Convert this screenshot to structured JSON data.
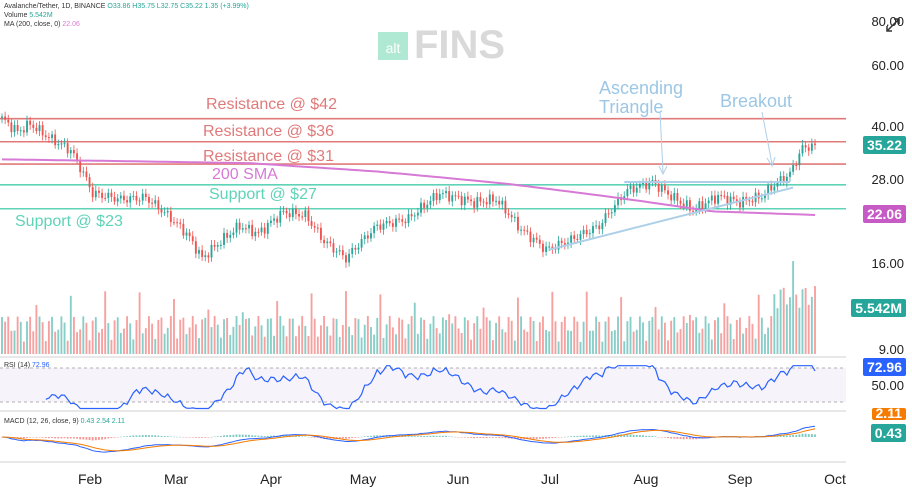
{
  "header": {
    "symbol_line": "Avalanche/Tether, 1D, BINANCE",
    "ohlc": "O33.86 H35.75 L32.75 C35.22 1.35 (+3.99%)",
    "volume_label": "Volume",
    "volume_value": "5.542M",
    "ma_label": "MA (200, close, 0)",
    "ma_value": "22.06",
    "rsi_label": "RSI (14)",
    "rsi_value": "72.96",
    "macd_label": "MACD (12, 26, close, 9)",
    "macd_values": "0.43  2.54  2.11"
  },
  "watermark": {
    "alt": "alt",
    "brand": "FINS"
  },
  "price_axis": [
    "80.00",
    "60.00",
    "40.00",
    "28.00",
    "16.00",
    "9.00"
  ],
  "rsi_axis": "50.00",
  "badges": {
    "price": "35.22",
    "ma": "22.06",
    "volume": "5.542M",
    "rsi": "72.96",
    "macd_signal": "2.11",
    "macd": "0.43"
  },
  "months": [
    "Feb",
    "Mar",
    "Apr",
    "May",
    "Jun",
    "Jul",
    "Aug",
    "Sep",
    "Oct"
  ],
  "annotations": {
    "r42": "Resistance @ $42",
    "r36": "Resistance @ $36",
    "r31": "Resistance @ $31",
    "sma": "200 SMA",
    "s27": "Support @ $27",
    "s23": "Support @ $23",
    "triangle_1": "Ascending",
    "triangle_2": "Triangle",
    "breakout": "Breakout"
  },
  "colors": {
    "up": "#26a69a",
    "down": "#ef5350",
    "resistance": "#e07a7a",
    "support": "#5fd3b8",
    "sma": "#d67ad6",
    "rsi": "#2962ff",
    "triangle": "#aecfe8"
  },
  "chart_data": {
    "type": "line",
    "x_start": "2023-01-05",
    "x_end": "2023-09-22",
    "price_scale": "log",
    "levels": {
      "resistance": [
        42,
        36,
        31
      ],
      "support": [
        27,
        23
      ]
    },
    "close_anchors": [
      [
        "2023-01-05",
        42.0
      ],
      [
        "2023-01-10",
        38.5
      ],
      [
        "2023-01-14",
        40.5
      ],
      [
        "2023-01-20",
        37.0
      ],
      [
        "2023-01-27",
        34.0
      ],
      [
        "2023-02-03",
        25.5
      ],
      [
        "2023-02-12",
        24.5
      ],
      [
        "2023-02-20",
        24.8
      ],
      [
        "2023-02-27",
        22.0
      ],
      [
        "2023-03-05",
        19.5
      ],
      [
        "2023-03-10",
        16.5
      ],
      [
        "2023-03-16",
        18.5
      ],
      [
        "2023-03-22",
        20.5
      ],
      [
        "2023-03-28",
        19.5
      ],
      [
        "2023-04-05",
        22.5
      ],
      [
        "2023-04-12",
        22.0
      ],
      [
        "2023-04-18",
        18.5
      ],
      [
        "2023-04-25",
        16.5
      ],
      [
        "2023-05-05",
        20.5
      ],
      [
        "2023-05-15",
        21.5
      ],
      [
        "2023-05-25",
        25.5
      ],
      [
        "2023-06-05",
        24.0
      ],
      [
        "2023-06-12",
        24.5
      ],
      [
        "2023-06-20",
        20.0
      ],
      [
        "2023-06-28",
        17.5
      ],
      [
        "2023-07-05",
        18.5
      ],
      [
        "2023-07-15",
        20.5
      ],
      [
        "2023-07-24",
        26.0
      ],
      [
        "2023-08-01",
        27.5
      ],
      [
        "2023-08-07",
        25.0
      ],
      [
        "2023-08-14",
        22.8
      ],
      [
        "2023-08-22",
        25.0
      ],
      [
        "2023-08-29",
        24.0
      ],
      [
        "2023-09-05",
        25.0
      ],
      [
        "2023-09-10",
        27.5
      ],
      [
        "2023-09-14",
        29.0
      ],
      [
        "2023-09-18",
        34.5
      ],
      [
        "2023-09-22",
        35.22
      ]
    ],
    "sma200_anchors": [
      [
        "2023-01-05",
        32.0
      ],
      [
        "2023-02-15",
        31.6
      ],
      [
        "2023-03-25",
        31.2
      ],
      [
        "2023-05-05",
        29.5
      ],
      [
        "2023-06-15",
        27.2
      ],
      [
        "2023-07-20",
        24.8
      ],
      [
        "2023-08-20",
        22.6
      ],
      [
        "2023-09-22",
        22.06
      ]
    ],
    "triangle": {
      "top": [
        [
          "2023-07-23",
          27.5
        ],
        [
          "2023-09-14",
          27.5
        ]
      ],
      "bottom": [
        [
          "2023-06-29",
          17.5
        ],
        [
          "2023-09-15",
          26.5
        ]
      ]
    },
    "rsi_last": 72.96,
    "macd_last": {
      "macd": 0.43,
      "signal": 2.11,
      "hist": 2.54
    },
    "volume_last": "5.542M"
  }
}
